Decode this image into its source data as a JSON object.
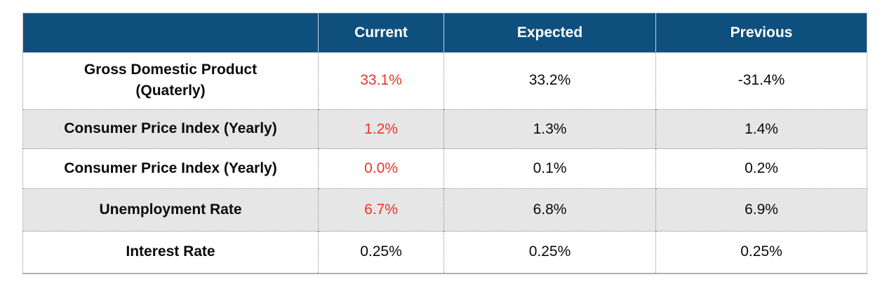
{
  "accent_colors": {
    "header_bg": "#0f4f7e",
    "header_text": "#ffffff",
    "row_alt_bg": "#e6e6e6",
    "highlight_red": "#e93529",
    "body_text": "#0a0a0a"
  },
  "chart_data": {
    "type": "table",
    "title": "",
    "columns": [
      "",
      "Current",
      "Expected",
      "Previous"
    ],
    "rows": [
      {
        "label": "Gross Domestic Product\n(Quaterly)",
        "current": "33.1%",
        "expected": "33.2%",
        "previous": "-31.4%",
        "current_highlighted": true
      },
      {
        "label": "Consumer Price Index (Yearly)",
        "current": "1.2%",
        "expected": "1.3%",
        "previous": "1.4%",
        "current_highlighted": true
      },
      {
        "label": "Consumer Price Index (Yearly)",
        "current": "0.0%",
        "expected": "0.1%",
        "previous": "0.2%",
        "current_highlighted": true
      },
      {
        "label": "Unemployment Rate",
        "current": "6.7%",
        "expected": "6.8%",
        "previous": "6.9%",
        "current_highlighted": true
      },
      {
        "label": "Interest Rate",
        "current": "0.25%",
        "expected": "0.25%",
        "previous": "0.25%",
        "current_highlighted": false
      }
    ]
  }
}
